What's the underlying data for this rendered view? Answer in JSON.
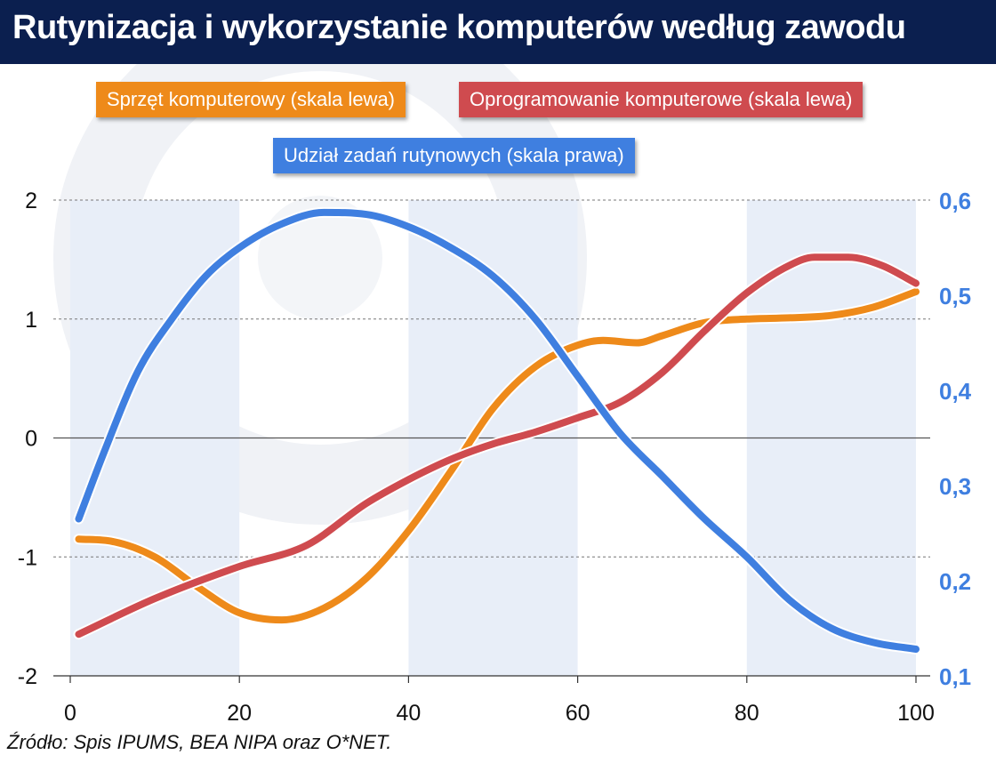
{
  "title": "Rutynizacja i wykorzystanie komputerów według zawodu",
  "source": "Źródło: Spis IPUMS, BEA NIPA oraz O*NET.",
  "colors": {
    "title_bg": "#0b1f4f",
    "hardware": "#ee8a1a",
    "software": "#cf4b4f",
    "routine": "#3f7fe0",
    "band": "#e8eef8"
  },
  "chart_data": {
    "type": "line",
    "xlim": [
      0,
      100
    ],
    "x_ticks": [
      "0",
      "20",
      "40",
      "60",
      "80",
      "100"
    ],
    "y_left_lim": [
      -2,
      2
    ],
    "y_left_ticks": [
      "2",
      "1",
      "0",
      "-1",
      "-2"
    ],
    "y_right_lim": [
      0.1,
      0.6
    ],
    "y_right_ticks": [
      "0,6",
      "0,5",
      "0,4",
      "0,3",
      "0,2",
      "0,1"
    ],
    "bands": [
      [
        0,
        20
      ],
      [
        40,
        60
      ],
      [
        80,
        100
      ]
    ],
    "grid": "horizontal dashed",
    "series": [
      {
        "name": "Sprzęt komputerowy (skala lewa)",
        "axis": "left",
        "x": [
          1,
          5,
          10,
          15,
          20,
          25,
          30,
          35,
          40,
          45,
          50,
          55,
          60,
          63,
          67,
          70,
          75,
          80,
          85,
          90,
          95,
          100
        ],
        "y": [
          -0.85,
          -0.87,
          -1.0,
          -1.25,
          -1.47,
          -1.53,
          -1.43,
          -1.18,
          -0.78,
          -0.28,
          0.25,
          0.6,
          0.78,
          0.82,
          0.8,
          0.86,
          0.97,
          1.0,
          1.01,
          1.03,
          1.1,
          1.23
        ]
      },
      {
        "name": "Oprogramowanie komputerowe (skala lewa)",
        "axis": "left",
        "x": [
          1,
          10,
          20,
          28,
          35,
          40,
          45,
          50,
          55,
          60,
          65,
          70,
          75,
          80,
          85,
          88,
          92,
          96,
          100
        ],
        "y": [
          -1.65,
          -1.35,
          -1.08,
          -0.9,
          -0.55,
          -0.35,
          -0.18,
          -0.05,
          0.05,
          0.17,
          0.3,
          0.55,
          0.9,
          1.22,
          1.45,
          1.52,
          1.52,
          1.45,
          1.3
        ]
      },
      {
        "name": "Udział zadań rutynowych (skala prawa)",
        "axis": "right",
        "x": [
          1,
          4,
          8,
          12,
          16,
          20,
          25,
          30,
          35,
          40,
          45,
          50,
          55,
          60,
          65,
          70,
          75,
          80,
          85,
          90,
          95,
          100
        ],
        "y": [
          0.265,
          0.335,
          0.42,
          0.475,
          0.52,
          0.55,
          0.575,
          0.587,
          0.585,
          0.572,
          0.55,
          0.52,
          0.475,
          0.415,
          0.355,
          0.31,
          0.265,
          0.225,
          0.18,
          0.15,
          0.135,
          0.128
        ]
      }
    ]
  }
}
